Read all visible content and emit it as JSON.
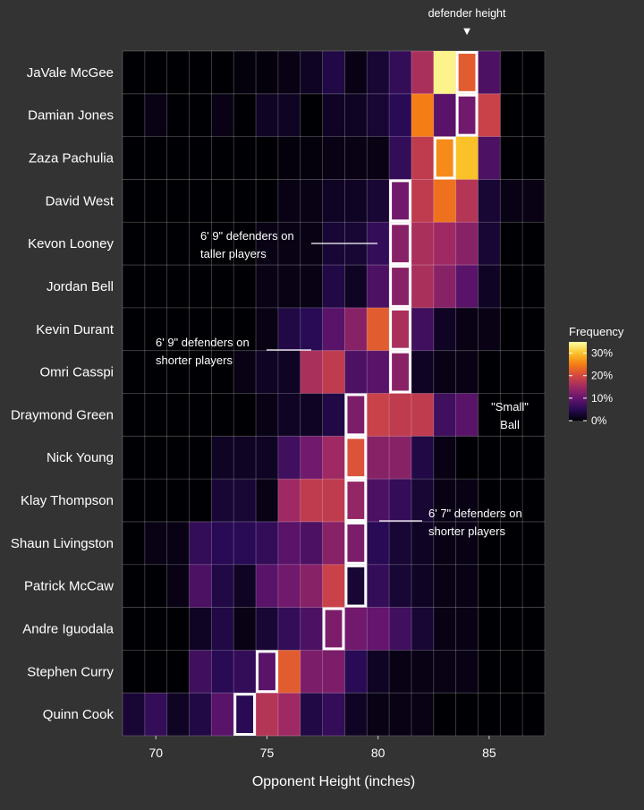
{
  "chart_data": {
    "type": "heatmap",
    "title": "",
    "xlabel": "Opponent Height (inches)",
    "ylabel": "",
    "x": [
      69,
      70,
      71,
      72,
      73,
      74,
      75,
      76,
      77,
      78,
      79,
      80,
      81,
      82,
      83,
      84,
      85,
      86,
      87
    ],
    "xlim": [
      68.5,
      87.5
    ],
    "xticks": [
      70,
      75,
      80,
      85
    ],
    "x_tick_labels": [
      "70",
      "75",
      "80",
      "85"
    ],
    "players": [
      "JaVale McGee",
      "Damian Jones",
      "Zaza Pachulia",
      "David West",
      "Kevon Looney",
      "Jordan Bell",
      "Kevin Durant",
      "Omri Casspi",
      "Draymond Green",
      "Nick Young",
      "Klay Thompson",
      "Shaun Livingston",
      "Patrick McCaw",
      "Andre Iguodala",
      "Stephen Curry",
      "Quinn Cook"
    ],
    "defender_height": [
      84,
      84,
      83,
      81,
      81,
      81,
      81,
      81,
      79,
      79,
      79,
      79,
      79,
      78,
      75,
      74
    ],
    "values": [
      [
        0,
        0,
        0,
        0,
        0,
        0.5,
        0.5,
        1,
        2,
        4,
        1,
        3,
        6,
        16,
        34,
        22,
        8,
        0,
        0
      ],
      [
        0,
        1,
        0,
        0,
        1,
        0,
        2,
        2,
        0,
        2,
        2,
        3,
        5,
        25,
        9,
        11,
        19,
        0,
        0
      ],
      [
        0,
        0,
        0,
        0,
        0,
        0,
        0,
        0.5,
        0.5,
        1,
        1,
        1,
        6,
        18,
        26,
        30,
        8,
        0,
        0
      ],
      [
        0,
        0,
        0,
        0,
        0,
        0,
        0,
        1,
        1,
        2,
        2,
        3,
        11,
        18,
        24,
        17,
        3,
        1,
        1
      ],
      [
        0,
        0,
        0,
        0,
        0,
        0,
        1,
        1,
        1,
        3,
        3,
        6,
        13,
        16,
        15,
        13,
        3,
        0,
        0
      ],
      [
        0,
        0,
        0,
        0,
        0,
        0,
        1,
        1,
        1,
        4,
        2,
        8,
        13,
        16,
        13,
        9,
        2,
        0,
        0
      ],
      [
        0,
        0,
        0,
        0,
        0,
        0,
        1,
        4,
        5,
        9,
        13,
        22,
        16,
        7,
        2,
        1,
        1,
        0,
        0
      ],
      [
        0,
        0,
        0,
        0,
        0,
        1,
        2,
        2,
        16,
        18,
        8,
        9,
        13,
        2,
        1,
        1,
        0,
        0,
        0
      ],
      [
        0,
        0,
        0,
        0,
        0,
        0,
        1,
        2,
        2,
        4,
        12,
        19,
        18,
        18,
        7,
        9,
        0,
        0,
        0
      ],
      [
        0,
        0,
        0,
        0,
        2,
        2,
        2,
        7,
        11,
        15,
        21,
        13,
        13,
        4,
        1,
        0,
        0,
        0,
        0
      ],
      [
        0,
        0,
        0,
        0,
        3,
        3,
        1,
        15,
        18,
        18,
        14,
        8,
        6,
        3,
        1,
        1,
        0,
        0,
        0
      ],
      [
        0,
        1,
        1,
        6,
        5,
        5,
        6,
        9,
        8,
        13,
        12,
        5,
        3,
        2,
        1,
        1,
        0,
        0,
        0
      ],
      [
        0,
        0,
        1,
        8,
        4,
        2,
        9,
        11,
        13,
        19,
        3,
        6,
        3,
        2,
        1,
        1,
        0,
        0,
        0
      ],
      [
        0,
        0,
        0,
        2,
        4,
        1,
        3,
        6,
        8,
        12,
        11,
        10,
        7,
        3,
        1,
        1,
        0,
        0,
        0
      ],
      [
        0,
        0,
        0,
        7,
        5,
        6,
        9,
        22,
        12,
        12,
        5,
        2,
        1,
        1,
        1,
        1,
        0,
        0,
        0
      ],
      [
        3,
        6,
        2,
        4,
        9,
        5,
        17,
        15,
        4,
        6,
        2,
        1,
        1,
        1,
        0,
        0,
        0,
        0,
        0
      ]
    ],
    "top_annotation": "defender height",
    "top_marker": "▼",
    "annotations": [
      {
        "lines": [
          "6' 9\" defenders on",
          "taller players"
        ]
      },
      {
        "lines": [
          "6' 9\" defenders on",
          "shorter players"
        ]
      },
      {
        "lines": [
          "\"Small\"",
          "Ball"
        ]
      },
      {
        "lines": [
          "6' 7\" defenders on",
          "shorter players"
        ]
      }
    ],
    "legend": {
      "title": "Frequency",
      "position": "right",
      "labels": [
        "30%",
        "20%",
        "10%",
        "0%"
      ],
      "label_values": [
        30,
        20,
        10,
        0
      ],
      "max": 35
    },
    "colormap": [
      "#000004",
      "#280b54",
      "#65156e",
      "#9f2a63",
      "#d44842",
      "#f57d15",
      "#fac228",
      "#fcffa4"
    ],
    "grid": true
  }
}
